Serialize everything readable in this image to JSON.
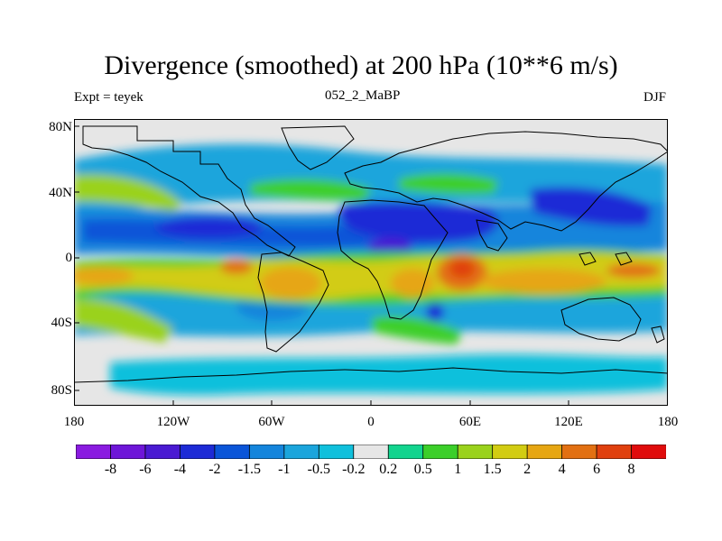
{
  "header": {
    "title": "Divergence (smoothed) at 200 hPa (10**6 m/s)",
    "left": "Expt = teyek",
    "center": "052_2_MaBP",
    "right": "DJF"
  },
  "axes": {
    "lat_ticks": [
      "80N",
      "40N",
      "0",
      "40S",
      "80S"
    ],
    "lon_ticks": [
      "180",
      "120W",
      "60W",
      "0",
      "60E",
      "120E",
      "180"
    ],
    "lat_range": [
      -90,
      90
    ],
    "lon_range": [
      -180,
      180
    ]
  },
  "colorbar": {
    "labels": [
      "-8",
      "-6",
      "-4",
      "-2",
      "-1.5",
      "-1",
      "-0.5",
      "-0.2",
      "0.2",
      "0.5",
      "1",
      "1.5",
      "2",
      "4",
      "6",
      "8"
    ],
    "colors": [
      "#8a1be0",
      "#6e16d8",
      "#4a1ad2",
      "#1d2bd6",
      "#0a55d8",
      "#1485dc",
      "#1ba5dc",
      "#10c0dc",
      "#e6e6e6",
      "#12d48e",
      "#3ccf2a",
      "#9ad21c",
      "#d2cc12",
      "#e6a612",
      "#e27012",
      "#e0400e",
      "#e00c0c"
    ]
  }
}
